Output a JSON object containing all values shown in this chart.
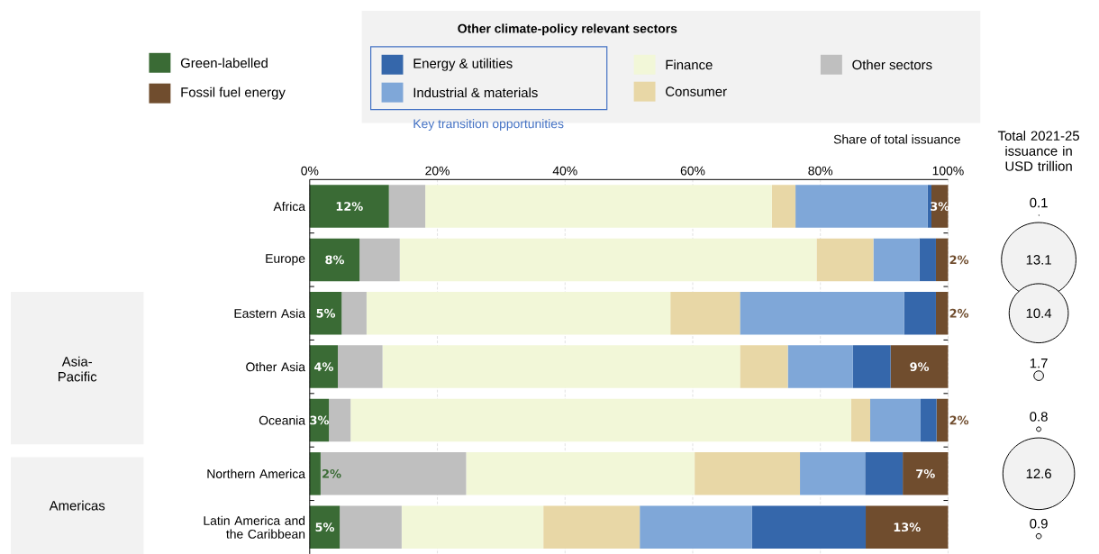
{
  "chart_data": [
    {
      "type": "bar",
      "orientation": "horizontal",
      "stacked": true,
      "xlabel": "Share of total issuance",
      "legend_title": "Other climate-policy relevant sectors",
      "legend": "top",
      "grid": "x",
      "annotations": [
        "Key transition opportunities",
        "Asia-Pacific",
        "Americas"
      ],
      "categories": [
        "Africa",
        "Europe",
        "Eastern Asia",
        "Other Asia",
        "Oceania",
        "Northern America",
        "Latin America and the Caribbean"
      ],
      "xlim": [
        0,
        100
      ],
      "xticks": [
        {
          "value": 0,
          "label": "0%"
        },
        {
          "value": 20,
          "label": "20%"
        },
        {
          "value": 40,
          "label": "40%"
        },
        {
          "value": 60,
          "label": "60%"
        },
        {
          "value": 80,
          "label": "80%"
        },
        {
          "value": 100,
          "label": "100%"
        }
      ],
      "series": [
        {
          "name": "Green-labelled",
          "color": "#3a6b35",
          "values": [
            12.4,
            7.8,
            5.0,
            4.4,
            3.0,
            1.7,
            4.7
          ],
          "value_labels": [
            "12%",
            "8%",
            "5%",
            "4%",
            "3%",
            "2%",
            "5%"
          ]
        },
        {
          "name": "Other sectors",
          "color": "#bfbfbf",
          "values": [
            5.7,
            6.3,
            3.9,
            7.0,
            3.4,
            22.8,
            9.7
          ]
        },
        {
          "name": "Finance",
          "color": "#f2f7d8",
          "values": [
            54.3,
            65.3,
            47.6,
            56.0,
            78.4,
            35.8,
            22.2
          ]
        },
        {
          "name": "Consumer",
          "color": "#e8d7a6",
          "values": [
            3.7,
            8.9,
            10.9,
            7.5,
            3.0,
            16.5,
            15.1
          ]
        },
        {
          "name": "Industrial & materials",
          "color": "#7fa7d8",
          "values": [
            20.7,
            7.2,
            25.7,
            10.2,
            7.9,
            10.2,
            17.6
          ]
        },
        {
          "name": "Energy & utilities",
          "color": "#3567ab",
          "values": [
            0.6,
            2.6,
            5.0,
            5.9,
            2.5,
            5.9,
            17.8
          ]
        },
        {
          "name": "Fossil fuel energy",
          "color": "#704d2e",
          "values": [
            2.6,
            1.9,
            1.9,
            9.0,
            1.8,
            7.1,
            12.9
          ],
          "value_labels": [
            "3%",
            "2%",
            "2%",
            "9%",
            "2%",
            "7%",
            "13%"
          ]
        }
      ]
    },
    {
      "type": "other",
      "title": "Total 2021-25 issuance in USD trillion",
      "color": "#f2f2f2",
      "data_labels": true,
      "values": [
        0.1,
        13.1,
        10.4,
        1.7,
        0.8,
        12.6,
        0.9
      ]
    }
  ]
}
